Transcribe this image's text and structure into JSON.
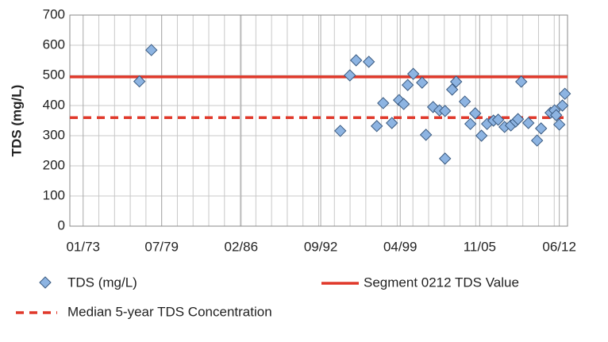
{
  "chart_data": {
    "type": "scatter",
    "y_label": "TDS (mg/L)",
    "xlim": [
      1971.9,
      2013.1
    ],
    "xticks": [
      {
        "value": 1973.0,
        "label": "01/73"
      },
      {
        "value": 1979.5,
        "label": "07/79"
      },
      {
        "value": 1986.08,
        "label": "02/86"
      },
      {
        "value": 1992.67,
        "label": "09/92"
      },
      {
        "value": 1999.25,
        "label": "04/99"
      },
      {
        "value": 2005.83,
        "label": "11/05"
      },
      {
        "value": 2012.42,
        "label": "06/12"
      }
    ],
    "ylim": [
      0,
      700
    ],
    "yticks": [
      0,
      100,
      200,
      300,
      400,
      500,
      600,
      700
    ],
    "grid": true,
    "series": [
      {
        "name": "TDS (mg/L)",
        "color": "#8db4e2",
        "x": [
          1977.66,
          1978.65,
          1994.29,
          1995.08,
          1995.6,
          1996.65,
          1997.31,
          1997.84,
          1998.56,
          1999.15,
          1999.54,
          1999.87,
          2000.33,
          2001.06,
          2001.38,
          2001.97,
          2002.5,
          2002.96,
          2002.96,
          2003.55,
          2003.88,
          2004.6,
          2005.06,
          2005.46,
          2005.98,
          2006.44,
          2006.97,
          2007.36,
          2007.89,
          2008.41,
          2008.81,
          2009.0,
          2009.27,
          2009.86,
          2010.58,
          2010.91,
          2011.7,
          2012.03,
          2012.16,
          2012.42,
          2012.68,
          2012.88
        ],
        "values": [
          480,
          584,
          316,
          500,
          550,
          545,
          332,
          408,
          342,
          418,
          405,
          468,
          505,
          476,
          303,
          395,
          384,
          382,
          224,
          453,
          479,
          413,
          339,
          374,
          300,
          339,
          350,
          353,
          329,
          334,
          347,
          355,
          479,
          342,
          284,
          324,
          376,
          384,
          368,
          337,
          400,
          439
        ]
      }
    ],
    "hlines": [
      {
        "name": "Segment 0212 TDS Value",
        "color": "#e0392b",
        "value": 495,
        "dashed": false
      },
      {
        "name": "Median 5-year TDS Concentration",
        "color": "#e0392b",
        "value": 360,
        "dashed": true
      }
    ]
  }
}
